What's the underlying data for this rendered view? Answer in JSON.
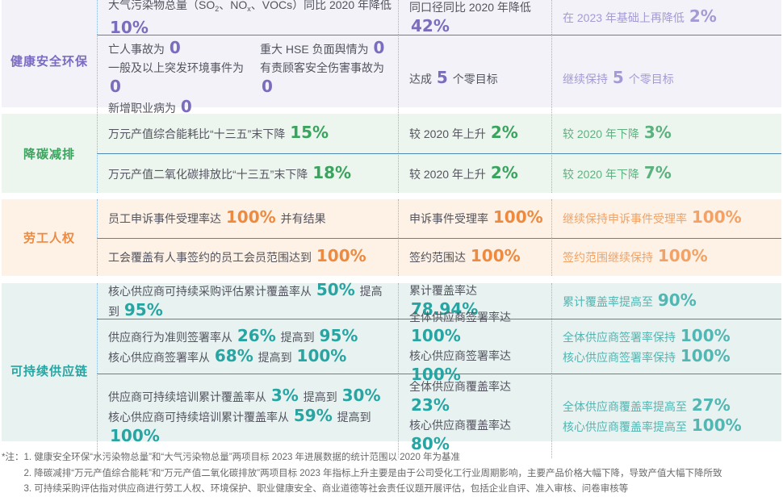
{
  "table": {
    "separator_color": "#4e87b0",
    "dotted_line_color": "#8fb6d8",
    "body_text_color": "#54545f",
    "sections": [
      {
        "id": "hse",
        "label": "健康安全环保",
        "colors": {
          "bg": "#f2f2f8",
          "strong": "#7b6cbe",
          "light": "#a49bd4"
        },
        "rows": [
          {
            "target": {
              "lines": [
                [
                  {
                    "k": "t",
                    "v": "大气污染物总量（SO"
                  },
                  {
                    "k": "s",
                    "v": "2"
                  },
                  {
                    "k": "t",
                    "v": "、NO"
                  },
                  {
                    "k": "s",
                    "v": "x"
                  },
                  {
                    "k": "t",
                    "v": "、VOCs）同比 2020 年降低 "
                  },
                  {
                    "k": "n",
                    "v": "10%"
                  }
                ]
              ]
            },
            "progress": {
              "lines": [
                [
                  {
                    "k": "t",
                    "v": "同口径同比 2020 年降低 "
                  },
                  {
                    "k": "n",
                    "v": "42%"
                  }
                ]
              ]
            },
            "future": {
              "lines": [
                [
                  {
                    "k": "t",
                    "v": "在 2023 年基础上再降低 "
                  },
                  {
                    "k": "n",
                    "v": "2%"
                  }
                ]
              ]
            }
          },
          {
            "target": {
              "cols": [
                {
                  "lines": [
                    [
                      {
                        "k": "t",
                        "v": "亡人事故为 "
                      },
                      {
                        "k": "n",
                        "v": "0"
                      }
                    ],
                    [
                      {
                        "k": "t",
                        "v": "一般及以上突发环境事件为 "
                      },
                      {
                        "k": "n",
                        "v": "0"
                      }
                    ],
                    [
                      {
                        "k": "t",
                        "v": "新增职业病为 "
                      },
                      {
                        "k": "n",
                        "v": "0"
                      }
                    ]
                  ]
                },
                {
                  "lines": [
                    [
                      {
                        "k": "t",
                        "v": "重大 HSE 负面舆情为 "
                      },
                      {
                        "k": "n",
                        "v": "0"
                      }
                    ],
                    [
                      {
                        "k": "t",
                        "v": "有责顾客安全伤害事故为 "
                      },
                      {
                        "k": "n",
                        "v": "0"
                      }
                    ]
                  ]
                }
              ]
            },
            "progress": {
              "lines": [
                [
                  {
                    "k": "t",
                    "v": "达成 "
                  },
                  {
                    "k": "n",
                    "v": "5"
                  },
                  {
                    "k": "t",
                    "v": " 个零目标"
                  }
                ]
              ]
            },
            "future": {
              "lines": [
                [
                  {
                    "k": "t",
                    "v": "继续保持 "
                  },
                  {
                    "k": "n",
                    "v": "5"
                  },
                  {
                    "k": "t",
                    "v": " 个零目标"
                  }
                ]
              ]
            }
          }
        ]
      },
      {
        "id": "carbon",
        "label": "降碳减排",
        "colors": {
          "bg": "#edf5ef",
          "strong": "#3aa45e",
          "light": "#5cb27e"
        },
        "rows": [
          {
            "target": {
              "lines": [
                [
                  {
                    "k": "t",
                    "v": "万元产值综合能耗比“十三五”末下降 "
                  },
                  {
                    "k": "n",
                    "v": "15%"
                  }
                ]
              ]
            },
            "progress": {
              "lines": [
                [
                  {
                    "k": "t",
                    "v": "较 2020 年上升 "
                  },
                  {
                    "k": "n",
                    "v": "2%"
                  }
                ]
              ]
            },
            "future": {
              "lines": [
                [
                  {
                    "k": "t",
                    "v": "较 2020 年下降 "
                  },
                  {
                    "k": "n",
                    "v": "3%"
                  }
                ]
              ]
            }
          },
          {
            "target": {
              "lines": [
                [
                  {
                    "k": "t",
                    "v": "万元产值二氧化碳排放比“十三五”末下降 "
                  },
                  {
                    "k": "n",
                    "v": "18%"
                  }
                ]
              ]
            },
            "progress": {
              "lines": [
                [
                  {
                    "k": "t",
                    "v": "较 2020 年上升 "
                  },
                  {
                    "k": "n",
                    "v": "2%"
                  }
                ]
              ]
            },
            "future": {
              "lines": [
                [
                  {
                    "k": "t",
                    "v": "较 2020 年下降 "
                  },
                  {
                    "k": "n",
                    "v": "7%"
                  }
                ]
              ]
            }
          }
        ]
      },
      {
        "id": "labor",
        "label": "劳工人权",
        "colors": {
          "bg": "#fdf2e5",
          "strong": "#ee8a40",
          "light": "#f2a266"
        },
        "rows": [
          {
            "target": {
              "lines": [
                [
                  {
                    "k": "t",
                    "v": "员工申诉事件受理率达 "
                  },
                  {
                    "k": "n",
                    "v": "100%"
                  },
                  {
                    "k": "t",
                    "v": " 并有结果"
                  }
                ]
              ]
            },
            "progress": {
              "lines": [
                [
                  {
                    "k": "t",
                    "v": "申诉事件受理率 "
                  },
                  {
                    "k": "n",
                    "v": "100%"
                  }
                ]
              ]
            },
            "future": {
              "lines": [
                [
                  {
                    "k": "t",
                    "v": "继续保持申诉事件受理率 "
                  },
                  {
                    "k": "n",
                    "v": "100%"
                  }
                ]
              ]
            }
          },
          {
            "target": {
              "lines": [
                [
                  {
                    "k": "t",
                    "v": "工会覆盖有人事签约的员工会员范围达到 "
                  },
                  {
                    "k": "n",
                    "v": "100%"
                  }
                ]
              ]
            },
            "progress": {
              "lines": [
                [
                  {
                    "k": "t",
                    "v": "签约范围达 "
                  },
                  {
                    "k": "n",
                    "v": "100%"
                  }
                ]
              ]
            },
            "future": {
              "lines": [
                [
                  {
                    "k": "t",
                    "v": "签约范围继续保持 "
                  },
                  {
                    "k": "n",
                    "v": "100%"
                  }
                ]
              ]
            }
          }
        ]
      },
      {
        "id": "supply",
        "label": "可持续供应链",
        "colors": {
          "bg": "#e7f2f1",
          "strong": "#27a5a2",
          "light": "#52b6b2"
        },
        "rows": [
          {
            "target": {
              "lines": [
                [
                  {
                    "k": "t",
                    "v": "核心供应商可持续采购评估累计覆盖率从 "
                  },
                  {
                    "k": "n",
                    "v": "50%"
                  },
                  {
                    "k": "t",
                    "v": " 提高到 "
                  },
                  {
                    "k": "n",
                    "v": "95%"
                  }
                ]
              ]
            },
            "progress": {
              "lines": [
                [
                  {
                    "k": "t",
                    "v": "累计覆盖率达 "
                  },
                  {
                    "k": "n",
                    "v": "78.94%"
                  }
                ]
              ]
            },
            "future": {
              "lines": [
                [
                  {
                    "k": "t",
                    "v": "累计覆盖率提高至 "
                  },
                  {
                    "k": "n",
                    "v": "90%"
                  }
                ]
              ]
            }
          },
          {
            "target": {
              "lines": [
                [
                  {
                    "k": "t",
                    "v": "供应商行为准则签署率从 "
                  },
                  {
                    "k": "n",
                    "v": "26%"
                  },
                  {
                    "k": "t",
                    "v": " 提高到 "
                  },
                  {
                    "k": "n",
                    "v": "95%"
                  }
                ],
                [
                  {
                    "k": "t",
                    "v": "核心供应商签署率从 "
                  },
                  {
                    "k": "n",
                    "v": "68%"
                  },
                  {
                    "k": "t",
                    "v": " 提高到 "
                  },
                  {
                    "k": "n",
                    "v": "100%"
                  }
                ]
              ]
            },
            "progress": {
              "lines": [
                [
                  {
                    "k": "t",
                    "v": "全体供应商签署率达 "
                  },
                  {
                    "k": "n",
                    "v": "100%"
                  }
                ],
                [
                  {
                    "k": "t",
                    "v": "核心供应商签署率达 "
                  },
                  {
                    "k": "n",
                    "v": "100%"
                  }
                ]
              ]
            },
            "future": {
              "lines": [
                [
                  {
                    "k": "t",
                    "v": "全体供应商签署率保持 "
                  },
                  {
                    "k": "n",
                    "v": "100%"
                  }
                ],
                [
                  {
                    "k": "t",
                    "v": "核心供应商签署率保持 "
                  },
                  {
                    "k": "n",
                    "v": "100%"
                  }
                ]
              ]
            }
          },
          {
            "target": {
              "lines": [
                [
                  {
                    "k": "t",
                    "v": "供应商可持续培训累计覆盖率从 "
                  },
                  {
                    "k": "n",
                    "v": "3%"
                  },
                  {
                    "k": "t",
                    "v": " 提高到 "
                  },
                  {
                    "k": "n",
                    "v": "30%"
                  }
                ],
                [
                  {
                    "k": "t",
                    "v": "核心供应商可持续培训累计覆盖率从 "
                  },
                  {
                    "k": "n",
                    "v": "59%"
                  },
                  {
                    "k": "t",
                    "v": " 提高到 "
                  },
                  {
                    "k": "n",
                    "v": "100%"
                  }
                ]
              ]
            },
            "progress": {
              "lines": [
                [
                  {
                    "k": "t",
                    "v": "全体供应商覆盖率达 "
                  },
                  {
                    "k": "n",
                    "v": "23%"
                  }
                ],
                [
                  {
                    "k": "t",
                    "v": "核心供应商覆盖率达 "
                  },
                  {
                    "k": "n",
                    "v": "80%"
                  }
                ]
              ]
            },
            "future": {
              "lines": [
                [
                  {
                    "k": "t",
                    "v": "全体供应商覆盖率提高至 "
                  },
                  {
                    "k": "n",
                    "v": "27%"
                  }
                ],
                [
                  {
                    "k": "t",
                    "v": "核心供应商覆盖率提高至 "
                  },
                  {
                    "k": "n",
                    "v": "100%"
                  }
                ]
              ]
            }
          }
        ]
      }
    ]
  },
  "footnotes": {
    "prefix": "*注：",
    "items": [
      "1. 健康安全环保“水污染物总量”和“大气污染物总量”两项目标 2023 年进展数据的统计范围以 2020 年为基准",
      "2. 降碳减排“万元产值综合能耗”和“万元产值二氧化碳排放”两项目标 2023 年指标上升主要是由于公司受化工行业周期影响，主要产品价格大幅下降，导致产值大幅下降所致",
      "3. 可持续采购评估指对供应商进行劳工人权、环境保护、职业健康安全、商业道德等社会责任议题开展评估，包括企业自评、准入审核、问卷审核等"
    ]
  }
}
